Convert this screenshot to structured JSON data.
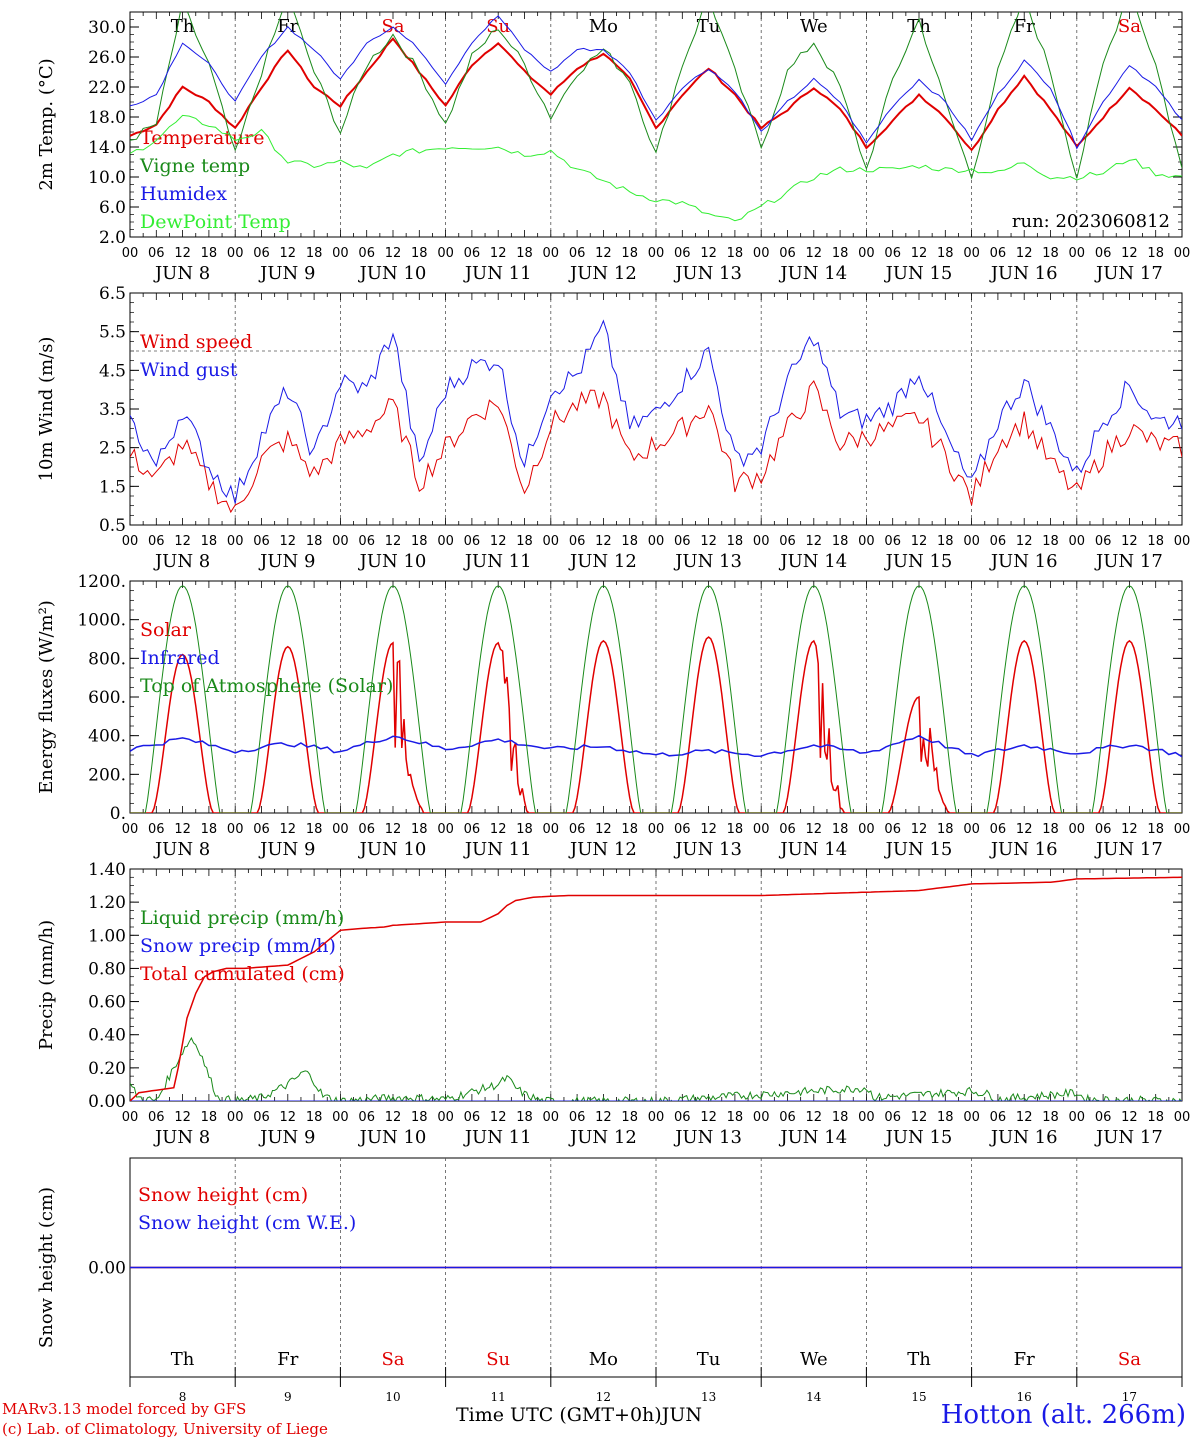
{
  "chart_data": [
    {
      "type": "line",
      "panel": "temperature",
      "ylabel": "2m Temp. (°C)",
      "ylim": [
        2.0,
        32.0
      ],
      "yticks": [
        "2.0",
        "6.0",
        "10.0",
        "14.0",
        "18.0",
        "22.0",
        "26.0",
        "30.0"
      ],
      "run_label": "run: 2023060812",
      "series": [
        {
          "name": "Temperature",
          "color": "#e00000",
          "x": [
            0,
            6,
            12,
            18,
            24,
            30,
            36,
            42,
            48,
            54,
            60,
            66,
            72,
            78,
            84,
            90,
            96,
            102,
            108,
            114,
            120,
            126,
            132,
            138,
            144,
            150,
            156,
            162,
            168,
            174,
            180,
            186,
            192,
            198,
            204,
            210,
            216,
            222,
            228,
            234,
            240
          ],
          "y": [
            15.5,
            17,
            22,
            20,
            16.5,
            22,
            27,
            22,
            19.5,
            24,
            28.5,
            24,
            19.5,
            25,
            28,
            24,
            21,
            24.5,
            26.5,
            23,
            16.5,
            21,
            24.5,
            21,
            16.5,
            19,
            22,
            19,
            14,
            17.5,
            21,
            18,
            13.5,
            19,
            23.5,
            19,
            14,
            18,
            22,
            19,
            15.5
          ]
        },
        {
          "name": "Vigne temp",
          "color": "#1a8a1a",
          "x": [
            0,
            6,
            12,
            18,
            24,
            30,
            36,
            42,
            48,
            54,
            60,
            66,
            72,
            78,
            84,
            90,
            96,
            102,
            108,
            114,
            120,
            126,
            132,
            138,
            144,
            150,
            156,
            162,
            168,
            174,
            180,
            186,
            192,
            198,
            204,
            210,
            216,
            222,
            228,
            234,
            240
          ],
          "y": [
            15,
            17,
            33,
            25,
            13,
            24,
            34,
            24,
            16,
            25,
            29,
            24,
            17,
            26,
            30,
            25,
            18,
            24,
            27,
            23,
            13,
            25,
            34,
            24,
            14,
            24,
            28,
            22,
            11,
            23,
            31,
            20,
            10,
            24,
            34,
            24,
            10,
            25,
            35,
            25,
            11
          ]
        },
        {
          "name": "Humidex",
          "color": "#1a1ae6",
          "x": [
            0,
            6,
            12,
            18,
            24,
            30,
            36,
            42,
            48,
            54,
            60,
            66,
            72,
            78,
            84,
            90,
            96,
            102,
            108,
            114,
            120,
            126,
            132,
            138,
            144,
            150,
            156,
            162,
            168,
            174,
            180,
            186,
            192,
            198,
            204,
            210,
            216,
            222,
            228,
            234,
            240
          ],
          "y": [
            19.5,
            21,
            28,
            25,
            20,
            26,
            30,
            27,
            23,
            28,
            30,
            27,
            22.5,
            28,
            31.5,
            27,
            24,
            27,
            27,
            24,
            17.5,
            22,
            24.5,
            21.5,
            16,
            20,
            23,
            20,
            14.5,
            19.5,
            23,
            20,
            15,
            21,
            25.5,
            22,
            14,
            20,
            25,
            22,
            17.5
          ]
        },
        {
          "name": "DewPoint Temp",
          "color": "#33ee33",
          "x": [
            0,
            6,
            12,
            18,
            24,
            30,
            36,
            42,
            48,
            54,
            60,
            66,
            72,
            78,
            84,
            90,
            96,
            102,
            108,
            114,
            120,
            126,
            132,
            138,
            144,
            150,
            156,
            162,
            168,
            174,
            180,
            186,
            192,
            198,
            204,
            210,
            216,
            222,
            228,
            234,
            240
          ],
          "y": [
            13,
            15,
            18,
            17,
            15,
            16,
            12,
            11.5,
            12,
            11,
            13,
            13.5,
            14,
            14,
            14,
            13,
            13.5,
            11,
            9.5,
            8,
            7,
            6.5,
            5,
            4,
            6,
            8,
            10,
            11,
            11,
            11,
            11.5,
            11,
            11,
            10.5,
            12,
            10,
            10,
            10.5,
            12.5,
            10.5,
            10
          ]
        }
      ]
    },
    {
      "type": "line",
      "panel": "wind",
      "ylabel": "10m Wind (m/s)",
      "ylim": [
        0.5,
        6.5
      ],
      "yticks": [
        "0.5",
        "1.5",
        "2.5",
        "3.5",
        "4.5",
        "5.5",
        "6.5"
      ],
      "reference_line": 5.0,
      "series": [
        {
          "name": "Wind speed",
          "color": "#e00000",
          "x": [
            0,
            6,
            12,
            18,
            24,
            30,
            36,
            42,
            48,
            54,
            60,
            66,
            72,
            78,
            84,
            90,
            96,
            102,
            108,
            114,
            120,
            126,
            132,
            138,
            144,
            150,
            156,
            162,
            168,
            174,
            180,
            186,
            192,
            198,
            204,
            210,
            216,
            222,
            228,
            234,
            240
          ],
          "y": [
            2.3,
            1.7,
            2.6,
            1.6,
            0.8,
            2.2,
            2.7,
            1.8,
            2.6,
            3.0,
            3.6,
            1.6,
            2.5,
            3.3,
            3.7,
            1.4,
            3.1,
            3.6,
            3.8,
            2.2,
            2.6,
            3.0,
            3.6,
            1.6,
            1.8,
            3.0,
            4.0,
            2.6,
            2.8,
            3.0,
            3.3,
            2.3,
            1.2,
            2.6,
            3.2,
            2.1,
            1.3,
            2.3,
            3.0,
            2.6,
            2.5
          ]
        },
        {
          "name": "Wind gust",
          "color": "#1a1ae6",
          "x": [
            0,
            6,
            12,
            18,
            24,
            30,
            36,
            42,
            48,
            54,
            60,
            66,
            72,
            78,
            84,
            90,
            96,
            102,
            108,
            114,
            120,
            126,
            132,
            138,
            144,
            150,
            156,
            162,
            168,
            174,
            180,
            186,
            192,
            198,
            204,
            210,
            216,
            222,
            228,
            234,
            240
          ],
          "y": [
            3.2,
            2.0,
            3.5,
            2.0,
            1.2,
            2.8,
            4.0,
            2.3,
            4.2,
            4.0,
            5.5,
            2.0,
            4.0,
            4.6,
            4.8,
            2.0,
            4.0,
            4.4,
            5.6,
            3.0,
            3.4,
            4.2,
            5.0,
            2.2,
            2.5,
            4.2,
            5.4,
            3.4,
            3.2,
            3.6,
            4.5,
            2.8,
            1.5,
            3.2,
            4.2,
            3.0,
            1.8,
            3.2,
            4.1,
            3.2,
            3.2
          ]
        }
      ]
    },
    {
      "type": "line",
      "panel": "energy",
      "ylabel": "Energy fluxes (W/m²)",
      "ylim": [
        0,
        1200
      ],
      "yticks": [
        "0.",
        "200.",
        "400.",
        "600.",
        "800.",
        "1000.",
        "1200."
      ],
      "series": [
        {
          "name": "Solar",
          "color": "#e00000",
          "peaks": [
            820,
            860,
            880,
            880,
            890,
            910,
            890,
            600,
            890,
            890
          ]
        },
        {
          "name": "Infrared",
          "color": "#1a1ae6",
          "x": [
            0,
            12,
            24,
            36,
            48,
            60,
            72,
            84,
            96,
            108,
            120,
            132,
            144,
            156,
            168,
            180,
            192,
            204,
            216,
            228,
            240
          ],
          "y": [
            330,
            385,
            320,
            360,
            320,
            400,
            330,
            380,
            330,
            345,
            300,
            320,
            300,
            350,
            310,
            400,
            295,
            350,
            310,
            355,
            300
          ]
        },
        {
          "name": "Top of Atmosphere (Solar)",
          "color": "#1a8a1a",
          "peak": 1175
        }
      ]
    },
    {
      "type": "line",
      "panel": "precip",
      "ylabel": "Precip (mm/h)",
      "ylim": [
        0,
        1.4
      ],
      "yticks": [
        "0.00",
        "0.20",
        "0.40",
        "0.60",
        "0.80",
        "1.00",
        "1.20",
        "1.40"
      ],
      "series": [
        {
          "name": "Liquid precip (mm/h)",
          "color": "#1a8a1a",
          "x": [
            0,
            2,
            6,
            10,
            12,
            14,
            16,
            18,
            20,
            24,
            30,
            36,
            40,
            42,
            44,
            48,
            60,
            64,
            72,
            84,
            86,
            88,
            90,
            94,
            96,
            120,
            168,
            170,
            192,
            196,
            198,
            216,
            218,
            240
          ],
          "y": [
            0.1,
            0.02,
            0.0,
            0.2,
            0.3,
            0.38,
            0.3,
            0.15,
            0.02,
            0.0,
            0.02,
            0.1,
            0.18,
            0.12,
            0.03,
            0.0,
            0.02,
            0.02,
            0.01,
            0.1,
            0.14,
            0.08,
            0.04,
            0.0,
            0.0,
            0.0,
            0.08,
            0.02,
            0.06,
            0.04,
            0.01,
            0.05,
            0.01,
            0.0
          ]
        },
        {
          "name": "Snow precip (mm/h)",
          "color": "#1a1ae6",
          "x": [
            0,
            240
          ],
          "y": [
            0,
            0
          ]
        },
        {
          "name": "Total cumulated (cm)",
          "color": "#e00000",
          "x": [
            0,
            2,
            10,
            11,
            13,
            15,
            17,
            19,
            22,
            26,
            36,
            42,
            48,
            52,
            58,
            60,
            72,
            80,
            84,
            86,
            88,
            92,
            100,
            120,
            144,
            168,
            180,
            192,
            210,
            216,
            240
          ],
          "y": [
            0.0,
            0.05,
            0.08,
            0.2,
            0.5,
            0.65,
            0.75,
            0.78,
            0.8,
            0.8,
            0.82,
            0.9,
            1.03,
            1.04,
            1.05,
            1.06,
            1.08,
            1.08,
            1.13,
            1.18,
            1.21,
            1.23,
            1.24,
            1.24,
            1.24,
            1.26,
            1.27,
            1.31,
            1.32,
            1.34,
            1.35
          ]
        }
      ]
    },
    {
      "type": "line",
      "panel": "snow",
      "ylabel": "Snow height (cm)",
      "yticks": [
        "0.00"
      ],
      "series": [
        {
          "name": "Snow height (cm)",
          "color": "#e00000",
          "x": [
            0,
            240
          ],
          "y": [
            0,
            0
          ]
        },
        {
          "name": "Snow height (cm W.E.)",
          "color": "#1a1ae6",
          "x": [
            0,
            240
          ],
          "y": [
            0,
            0
          ]
        }
      ]
    }
  ],
  "days": [
    {
      "abbr": "Th",
      "label": "JUN  8",
      "num": "8",
      "weekend": false
    },
    {
      "abbr": "Fr",
      "label": "JUN  9",
      "num": "9",
      "weekend": false
    },
    {
      "abbr": "Sa",
      "label": "JUN 10",
      "num": "10",
      "weekend": true
    },
    {
      "abbr": "Su",
      "label": "JUN 11",
      "num": "11",
      "weekend": true
    },
    {
      "abbr": "Mo",
      "label": "JUN 12",
      "num": "12",
      "weekend": false
    },
    {
      "abbr": "Tu",
      "label": "JUN 13",
      "num": "13",
      "weekend": false
    },
    {
      "abbr": "We",
      "label": "JUN 14",
      "num": "14",
      "weekend": false
    },
    {
      "abbr": "Th",
      "label": "JUN 15",
      "num": "15",
      "weekend": false
    },
    {
      "abbr": "Fr",
      "label": "JUN 16",
      "num": "16",
      "weekend": false
    },
    {
      "abbr": "Sa",
      "label": "JUN 17",
      "num": "17",
      "weekend": true
    }
  ],
  "hour_ticks": [
    "00",
    "06",
    "12",
    "18"
  ],
  "end_hour_tick": "00",
  "colors": {
    "weekend": "#e00000",
    "weekday": "#000000"
  },
  "footer": {
    "model_line": "MARv3.13 model forced by GFS",
    "credit_line": "(c) Lab. of Climatology, University of Liege",
    "xaxis_label": "Time UTC (GMT+0h)",
    "xaxis_month": "JUN",
    "station": "Hotton (alt. 266m)"
  }
}
